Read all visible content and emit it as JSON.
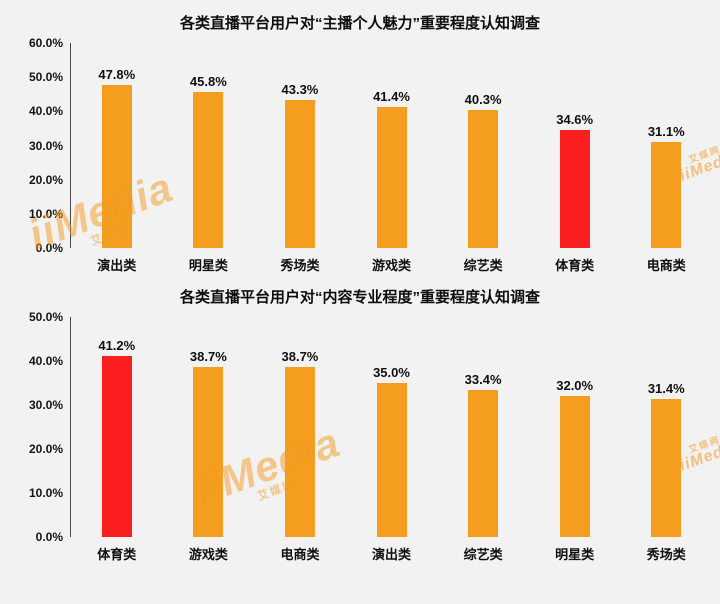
{
  "colors": {
    "bar": "#f49d1f",
    "highlight": "#fa1e1e",
    "background": "#f2f2f2",
    "text": "#111111",
    "watermark": "#f59a23"
  },
  "watermark": {
    "text": "iiMedia",
    "subtext": "艾媒网"
  },
  "chart_data": [
    {
      "type": "bar",
      "title": "各类直播平台用户对“主播个人魅力”重要程度认知调查",
      "categories": [
        "演出类",
        "明星类",
        "秀场类",
        "游戏类",
        "综艺类",
        "体育类",
        "电商类"
      ],
      "values": [
        47.8,
        45.8,
        43.3,
        41.4,
        40.3,
        34.6,
        31.1
      ],
      "data_labels": [
        "47.8%",
        "45.8%",
        "43.3%",
        "41.4%",
        "40.3%",
        "34.6%",
        "31.1%"
      ],
      "highlight_index": 5,
      "ymax": 60,
      "ytick_step": 10,
      "ytick_labels": [
        "60.0%",
        "50.0%",
        "40.0%",
        "30.0%",
        "20.0%",
        "10.0%",
        "0.0%"
      ],
      "xlabel": "",
      "ylabel": "",
      "grid": false,
      "legend": false
    },
    {
      "type": "bar",
      "title": "各类直播平台用户对“内容专业程度”重要程度认知调查",
      "categories": [
        "体育类",
        "游戏类",
        "电商类",
        "演出类",
        "综艺类",
        "明星类",
        "秀场类"
      ],
      "values": [
        41.2,
        38.7,
        38.7,
        35.0,
        33.4,
        32.0,
        31.4
      ],
      "data_labels": [
        "41.2%",
        "38.7%",
        "38.7%",
        "35.0%",
        "33.4%",
        "32.0%",
        "31.4%"
      ],
      "highlight_index": 0,
      "ymax": 50,
      "ytick_step": 10,
      "ytick_labels": [
        "50.0%",
        "40.0%",
        "30.0%",
        "20.0%",
        "10.0%",
        "0.0%"
      ],
      "xlabel": "",
      "ylabel": "",
      "grid": false,
      "legend": false
    }
  ]
}
